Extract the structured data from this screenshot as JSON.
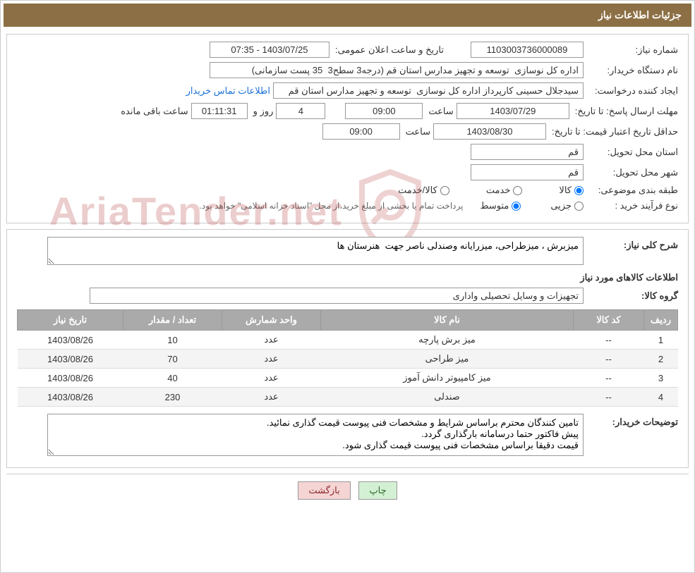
{
  "header": {
    "title": "جزئیات اطلاعات نیاز"
  },
  "form": {
    "need_number_label": "شماره نیاز:",
    "need_number": "1103003736000089",
    "announce_datetime_label": "تاریخ و ساعت اعلان عمومی:",
    "announce_datetime": "1403/07/25 - 07:35",
    "buyer_org_label": "نام دستگاه خریدار:",
    "buyer_org": "اداره کل نوسازی  توسعه و تجهیز مدارس استان قم (درجه3 سطح3  35 پست سازمانی)",
    "requester_label": "ایجاد کننده درخواست:",
    "requester": "سیدجلال حسینی کارپرداز اداره کل نوسازی  توسعه و تجهیز مدارس استان قم",
    "buyer_contact_link": "اطلاعات تماس خریدار",
    "response_deadline_label": "مهلت ارسال پاسخ:",
    "until_date_label": "تا تاریخ:",
    "response_date": "1403/07/29",
    "time_label": "ساعت",
    "response_time": "09:00",
    "days_remaining": "4",
    "days_and_label": "روز و",
    "time_remaining": "01:11:31",
    "time_remaining_label": "ساعت باقی مانده",
    "min_validity_label": "حداقل تاریخ اعتبار قیمت:",
    "validity_date": "1403/08/30",
    "validity_time": "09:00",
    "province_label": "استان محل تحویل:",
    "province": "قم",
    "city_label": "شهر محل تحویل:",
    "city": "قم",
    "category_label": "طبقه بندی موضوعی:",
    "category_opts": {
      "goods": "کالا",
      "service": "خدمت",
      "goods_service": "کالا/خدمت"
    },
    "process_type_label": "نوع فرآیند خرید :",
    "process_opts": {
      "partial": "جزیی",
      "medium": "متوسط"
    },
    "process_note": "پرداخت تمام یا بخشی از مبلغ خرید،از محل \"اسناد خزانه اسلامی\" خواهد بود."
  },
  "details": {
    "description_label": "شرح کلی نیاز:",
    "description": "میزبرش ، میزطراحی، میزرایانه وصندلی ناصر جهت  هنرستان ها",
    "items_title": "اطلاعات کالاهای مورد نیاز",
    "group_label": "گروه کالا:",
    "group_value": "تجهیزات و وسایل تحصیلی واداری",
    "table": {
      "headers": {
        "row": "ردیف",
        "code": "کد کالا",
        "name": "نام کالا",
        "unit": "واحد شمارش",
        "qty": "تعداد / مقدار",
        "date": "تاریخ نیاز"
      },
      "rows": [
        {
          "row": "1",
          "code": "--",
          "name": "میز برش پارچه",
          "unit": "عدد",
          "qty": "10",
          "date": "1403/08/26"
        },
        {
          "row": "2",
          "code": "--",
          "name": "میز طراحی",
          "unit": "عدد",
          "qty": "70",
          "date": "1403/08/26"
        },
        {
          "row": "3",
          "code": "--",
          "name": "میز کامپیوتر دانش آموز",
          "unit": "عدد",
          "qty": "40",
          "date": "1403/08/26"
        },
        {
          "row": "4",
          "code": "--",
          "name": "صندلی",
          "unit": "عدد",
          "qty": "230",
          "date": "1403/08/26"
        }
      ]
    },
    "buyer_notes_label": "توضیحات خریدار:",
    "buyer_notes": "تامین کنندگان محترم براساس شرایط و مشخصات فنی پیوست قیمت گذاری نمائید.\nپیش فاکتور حتما درسامانه بارگذاری گردد.\nقیمت دقیقا براساس مشخصات فنی پیوست قیمت گذاری شود."
  },
  "buttons": {
    "print": "چاپ",
    "back": "بازگشت"
  },
  "watermark": {
    "text": "AriaTender.net"
  },
  "colors": {
    "header_bg": "#8c6f44",
    "header_fg": "#ffffff",
    "border": "#cccccc",
    "field_border": "#999999",
    "table_header_bg": "#aaaaaa",
    "row_alt_bg": "#f4f4f4",
    "link": "#1a6fd6",
    "btn_print_bg": "#d4f0d4",
    "btn_print_fg": "#2a6b2a",
    "btn_back_bg": "#f5d4d4",
    "btn_back_fg": "#8b2a2a",
    "watermark": "rgba(180,55,55,0.25)"
  }
}
